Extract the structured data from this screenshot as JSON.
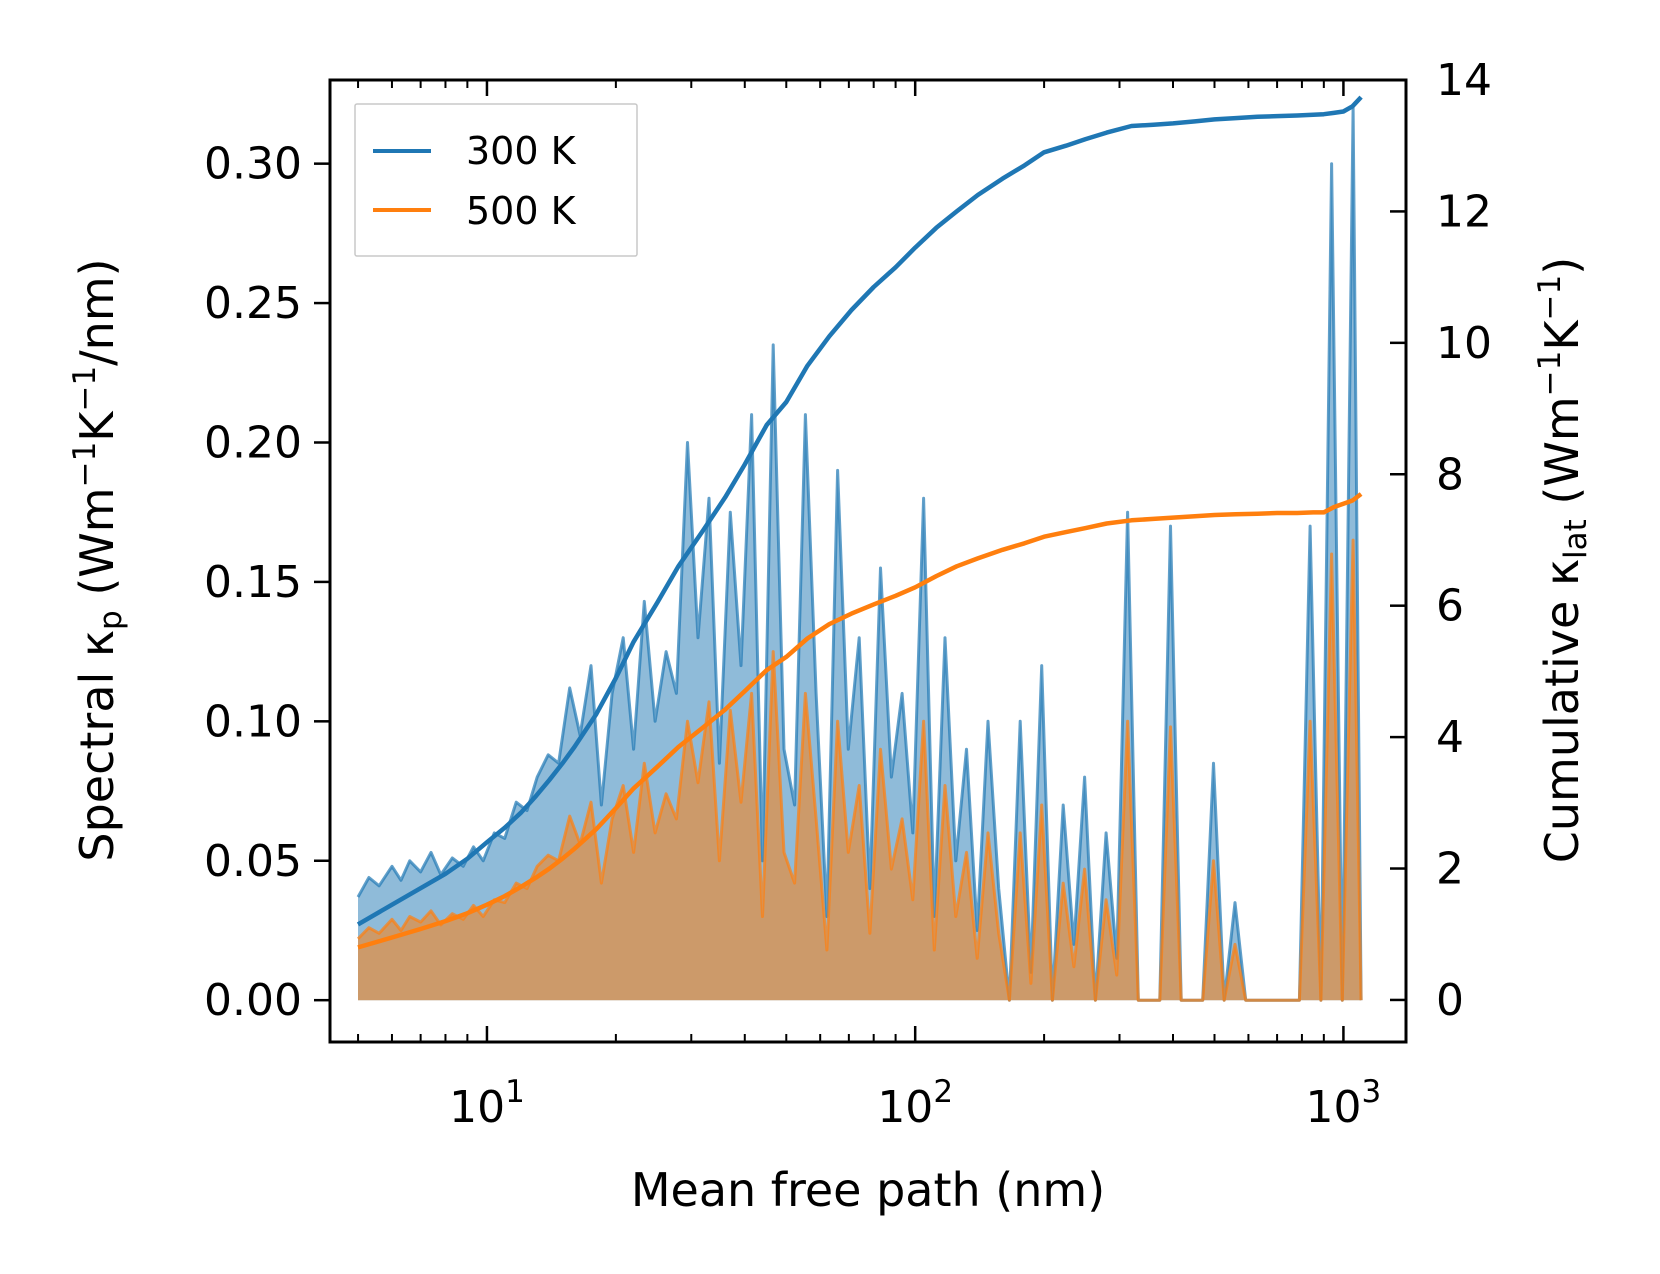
{
  "chart_data": {
    "type": "area+line",
    "xlabel": "Mean free path (nm)",
    "ylabel": "Spectral κₚ (Wm⁻¹K⁻¹/nm)",
    "ylabel_parts": [
      "Spectral κ",
      "p",
      " (Wm",
      "−1",
      "K",
      "−1",
      "/nm)"
    ],
    "y2label": "Cumulative κ_lat (Wm⁻¹K⁻¹)",
    "y2label_parts": [
      "Cumulative κ",
      "lat",
      " (Wm",
      "−1",
      "K",
      "−1",
      ")"
    ],
    "xscale": "log",
    "xlim": [
      4.3,
      1400
    ],
    "ylim": [
      -0.015,
      0.33
    ],
    "y2lim": [
      -0.64,
      14.0
    ],
    "x_ticks": [
      {
        "value": 10,
        "base": "10",
        "exp": "1"
      },
      {
        "value": 100,
        "base": "10",
        "exp": "2"
      },
      {
        "value": 1000,
        "base": "10",
        "exp": "3"
      }
    ],
    "y_ticks": [
      {
        "value": 0.0,
        "label": "0.00"
      },
      {
        "value": 0.05,
        "label": "0.05"
      },
      {
        "value": 0.1,
        "label": "0.10"
      },
      {
        "value": 0.15,
        "label": "0.15"
      },
      {
        "value": 0.2,
        "label": "0.20"
      },
      {
        "value": 0.25,
        "label": "0.25"
      },
      {
        "value": 0.3,
        "label": "0.30"
      }
    ],
    "y2_ticks": [
      {
        "value": 0,
        "label": "0"
      },
      {
        "value": 2,
        "label": "2"
      },
      {
        "value": 4,
        "label": "4"
      },
      {
        "value": 6,
        "label": "6"
      },
      {
        "value": 8,
        "label": "8"
      },
      {
        "value": 10,
        "label": "10"
      },
      {
        "value": 12,
        "label": "12"
      },
      {
        "value": 14,
        "label": "14"
      }
    ],
    "legend": {
      "position": "top-left",
      "entries": [
        "300 K",
        "500 K"
      ]
    },
    "series": [
      {
        "name": "300 K",
        "color": "#1f77b4",
        "spectral": {
          "x": [
            5.0,
            5.3,
            5.6,
            6.0,
            6.3,
            6.6,
            7.0,
            7.4,
            7.8,
            8.3,
            8.8,
            9.3,
            9.8,
            10.4,
            11.0,
            11.7,
            12.4,
            13.1,
            13.9,
            14.7,
            15.6,
            16.5,
            17.5,
            18.5,
            19.6,
            20.8,
            22.0,
            23.3,
            24.7,
            26.2,
            27.7,
            29.4,
            31.1,
            33.0,
            34.9,
            37.0,
            39.2,
            41.5,
            44.0,
            46.6,
            49.4,
            52.3,
            55.4,
            58.7,
            62.2,
            65.9,
            69.8,
            74.0,
            78.4,
            83.0,
            88.0,
            93.2,
            98.7,
            104.6,
            110.8,
            117.4,
            124.4,
            131.8,
            139.6,
            147.9,
            156.7,
            166.0,
            175.9,
            186.3,
            197.4,
            209.1,
            221.6,
            234.7,
            248.7,
            263.5,
            279.1,
            295.7,
            313.3,
            331.9,
            351.6,
            372.5,
            394.7,
            418.1,
            443.0,
            469.3,
            497.2,
            526.7,
            558.1,
            591.2,
            626.4,
            663.6,
            703.1,
            744.9,
            789.1,
            836.0,
            885.8,
            938.4,
            994.2,
            1053.3,
            1100.0
          ],
          "values": [
            0.037,
            0.044,
            0.041,
            0.048,
            0.043,
            0.05,
            0.046,
            0.053,
            0.045,
            0.051,
            0.048,
            0.055,
            0.05,
            0.06,
            0.058,
            0.071,
            0.068,
            0.08,
            0.088,
            0.085,
            0.112,
            0.095,
            0.12,
            0.07,
            0.11,
            0.13,
            0.09,
            0.143,
            0.1,
            0.125,
            0.11,
            0.2,
            0.13,
            0.18,
            0.085,
            0.175,
            0.12,
            0.21,
            0.05,
            0.235,
            0.09,
            0.07,
            0.21,
            0.11,
            0.03,
            0.19,
            0.09,
            0.13,
            0.04,
            0.155,
            0.08,
            0.11,
            0.06,
            0.18,
            0.03,
            0.13,
            0.05,
            0.09,
            0.025,
            0.1,
            0.04,
            0.0,
            0.1,
            0.01,
            0.12,
            0.0,
            0.07,
            0.02,
            0.08,
            0.0,
            0.06,
            0.015,
            0.175,
            0.0,
            0.0,
            0.0,
            0.17,
            0.0,
            0.0,
            0.0,
            0.085,
            0.0,
            0.035,
            0.0,
            0.0,
            0.0,
            0.0,
            0.0,
            0.0,
            0.17,
            0.0,
            0.3,
            0.0,
            0.32,
            0.0
          ]
        },
        "cumulative": {
          "x": [
            5.0,
            6.0,
            7.0,
            8.0,
            9.0,
            10.0,
            11.0,
            12.0,
            13.0,
            14.0,
            15.0,
            16.0,
            18.0,
            20.0,
            22.0,
            25.0,
            28.0,
            32.0,
            36.0,
            40.0,
            45.0,
            50.0,
            56.0,
            63.0,
            71.0,
            80.0,
            90.0,
            100.0,
            112.0,
            125.0,
            140.0,
            160.0,
            180.0,
            200.0,
            225.0,
            250.0,
            280.0,
            320.0,
            360.0,
            400.0,
            450.0,
            500.0,
            560.0,
            630.0,
            700.0,
            780.0,
            850.0,
            900.0,
            950.0,
            1000.0,
            1050.0,
            1100.0
          ],
          "values": [
            1.15,
            1.45,
            1.7,
            1.92,
            2.15,
            2.4,
            2.62,
            2.85,
            3.1,
            3.35,
            3.6,
            3.85,
            4.35,
            4.9,
            5.45,
            6.05,
            6.6,
            7.15,
            7.65,
            8.15,
            8.75,
            9.1,
            9.65,
            10.1,
            10.5,
            10.85,
            11.15,
            11.45,
            11.75,
            12.0,
            12.25,
            12.5,
            12.7,
            12.9,
            13.0,
            13.1,
            13.2,
            13.3,
            13.32,
            13.34,
            13.37,
            13.4,
            13.42,
            13.44,
            13.45,
            13.46,
            13.47,
            13.48,
            13.5,
            13.52,
            13.6,
            13.74
          ]
        }
      },
      {
        "name": "500 K",
        "color": "#ff7f0e",
        "spectral": {
          "x": [
            5.0,
            5.3,
            5.6,
            6.0,
            6.3,
            6.6,
            7.0,
            7.4,
            7.8,
            8.3,
            8.8,
            9.3,
            9.8,
            10.4,
            11.0,
            11.7,
            12.4,
            13.1,
            13.9,
            14.7,
            15.6,
            16.5,
            17.5,
            18.5,
            19.6,
            20.8,
            22.0,
            23.3,
            24.7,
            26.2,
            27.7,
            29.4,
            31.1,
            33.0,
            34.9,
            37.0,
            39.2,
            41.5,
            44.0,
            46.6,
            49.4,
            52.3,
            55.4,
            58.7,
            62.2,
            65.9,
            69.8,
            74.0,
            78.4,
            83.0,
            88.0,
            93.2,
            98.7,
            104.6,
            110.8,
            117.4,
            124.4,
            131.8,
            139.6,
            147.9,
            156.7,
            166.0,
            175.9,
            186.3,
            197.4,
            209.1,
            221.6,
            234.7,
            248.7,
            263.5,
            279.1,
            295.7,
            313.3,
            331.9,
            351.6,
            372.5,
            394.7,
            418.1,
            443.0,
            469.3,
            497.2,
            526.7,
            558.1,
            591.2,
            626.4,
            663.6,
            703.1,
            744.9,
            789.1,
            836.0,
            885.8,
            938.4,
            994.2,
            1053.3,
            1100.0
          ],
          "values": [
            0.022,
            0.026,
            0.024,
            0.029,
            0.025,
            0.03,
            0.028,
            0.032,
            0.027,
            0.031,
            0.029,
            0.034,
            0.03,
            0.036,
            0.035,
            0.042,
            0.04,
            0.048,
            0.052,
            0.05,
            0.066,
            0.056,
            0.071,
            0.042,
            0.065,
            0.077,
            0.053,
            0.085,
            0.06,
            0.074,
            0.065,
            0.1,
            0.078,
            0.107,
            0.05,
            0.104,
            0.071,
            0.11,
            0.03,
            0.125,
            0.053,
            0.042,
            0.11,
            0.065,
            0.018,
            0.1,
            0.053,
            0.077,
            0.024,
            0.09,
            0.047,
            0.065,
            0.036,
            0.1,
            0.018,
            0.077,
            0.03,
            0.053,
            0.015,
            0.06,
            0.024,
            0.0,
            0.06,
            0.006,
            0.07,
            0.0,
            0.042,
            0.012,
            0.047,
            0.0,
            0.036,
            0.009,
            0.1,
            0.0,
            0.0,
            0.0,
            0.098,
            0.0,
            0.0,
            0.0,
            0.05,
            0.0,
            0.02,
            0.0,
            0.0,
            0.0,
            0.0,
            0.0,
            0.0,
            0.1,
            0.0,
            0.16,
            0.0,
            0.165,
            0.0
          ]
        },
        "cumulative": {
          "x": [
            5.0,
            6.0,
            7.0,
            8.0,
            9.0,
            10.0,
            11.0,
            12.0,
            13.0,
            14.0,
            15.0,
            16.0,
            18.0,
            20.0,
            22.0,
            25.0,
            28.0,
            32.0,
            36.0,
            40.0,
            45.0,
            50.0,
            56.0,
            63.0,
            71.0,
            80.0,
            90.0,
            100.0,
            112.0,
            125.0,
            140.0,
            160.0,
            180.0,
            200.0,
            225.0,
            250.0,
            280.0,
            320.0,
            360.0,
            400.0,
            450.0,
            500.0,
            560.0,
            630.0,
            700.0,
            780.0,
            850.0,
            900.0,
            950.0,
            1000.0,
            1050.0,
            1100.0
          ],
          "values": [
            0.8,
            0.95,
            1.08,
            1.2,
            1.32,
            1.45,
            1.58,
            1.72,
            1.86,
            2.0,
            2.15,
            2.3,
            2.6,
            2.92,
            3.22,
            3.55,
            3.85,
            4.15,
            4.42,
            4.7,
            5.02,
            5.22,
            5.5,
            5.72,
            5.88,
            6.02,
            6.15,
            6.28,
            6.45,
            6.6,
            6.72,
            6.85,
            6.95,
            7.05,
            7.12,
            7.18,
            7.25,
            7.3,
            7.32,
            7.34,
            7.36,
            7.38,
            7.39,
            7.4,
            7.41,
            7.41,
            7.42,
            7.42,
            7.5,
            7.55,
            7.6,
            7.7
          ]
        }
      }
    ]
  }
}
